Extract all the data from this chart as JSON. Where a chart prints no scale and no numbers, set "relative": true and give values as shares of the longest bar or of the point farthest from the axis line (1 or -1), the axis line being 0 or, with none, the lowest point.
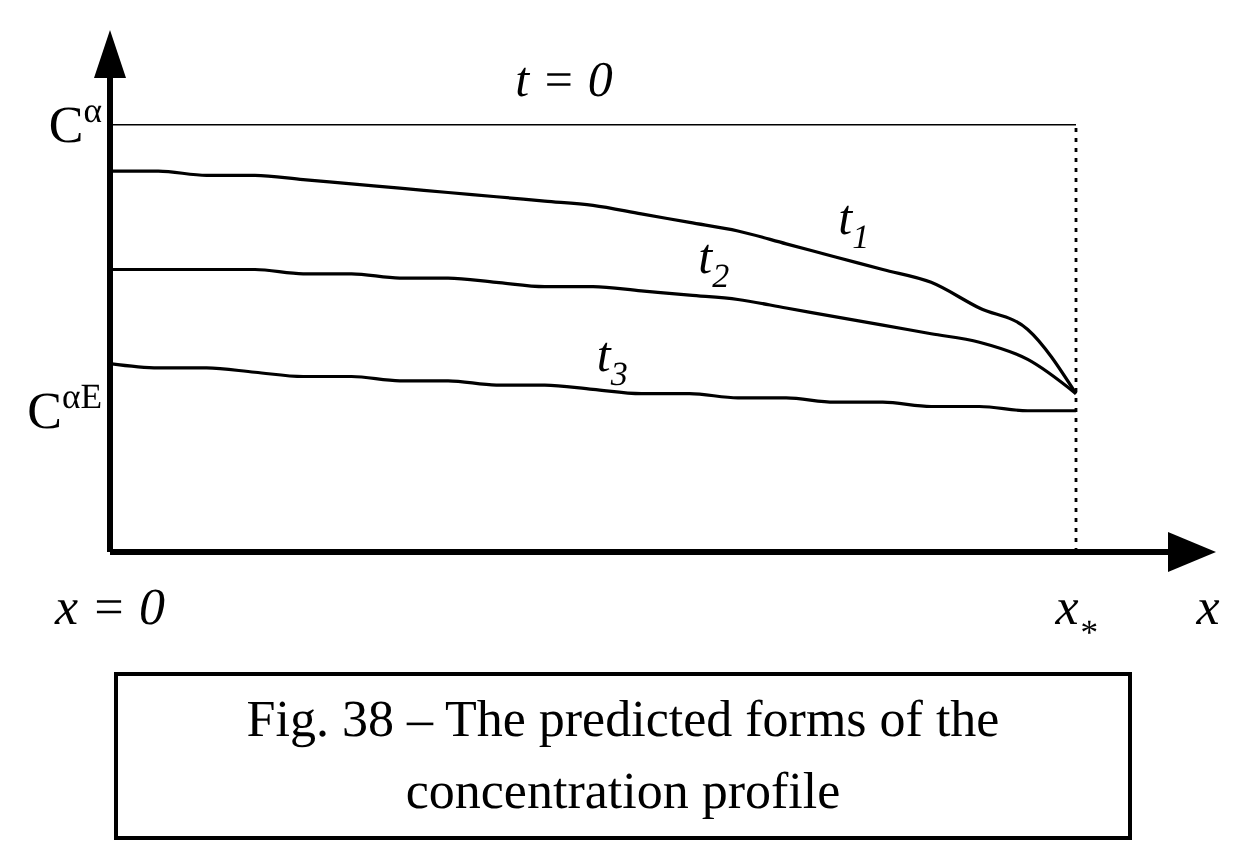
{
  "chart_data": {
    "type": "line",
    "relative": true,
    "xlabel": "x",
    "categories": [
      "x = 0",
      null,
      null,
      null,
      null,
      null,
      null,
      null,
      null,
      null,
      null,
      null,
      null,
      null,
      null,
      null,
      null,
      null,
      null,
      null,
      "x$_{*}$"
    ],
    "series": [
      {
        "name": "t = 0",
        "color": "#000000",
        "values": [
          1,
          1,
          1,
          1,
          1,
          1,
          1,
          1,
          1,
          1,
          1,
          1,
          1,
          1,
          1,
          1,
          1,
          1,
          1,
          1,
          1
        ]
      },
      {
        "name": "t$_{1}$",
        "color": "#000000",
        "values": [
          0.89,
          0.89,
          0.88,
          0.88,
          0.87,
          0.86,
          0.85,
          0.84,
          0.83,
          0.82,
          0.81,
          0.79,
          0.77,
          0.75,
          0.72,
          0.69,
          0.66,
          0.63,
          0.57,
          0.52,
          0.37
        ]
      },
      {
        "name": "t$_{2}$",
        "color": "#000000",
        "values": [
          0.66,
          0.66,
          0.66,
          0.66,
          0.65,
          0.65,
          0.64,
          0.64,
          0.63,
          0.62,
          0.62,
          0.61,
          0.6,
          0.59,
          0.57,
          0.55,
          0.53,
          0.51,
          0.49,
          0.45,
          0.37
        ]
      },
      {
        "name": "t$_{3}$",
        "color": "#000000",
        "values": [
          0.44,
          0.43,
          0.43,
          0.42,
          0.41,
          0.41,
          0.4,
          0.4,
          0.39,
          0.39,
          0.38,
          0.37,
          0.37,
          0.36,
          0.36,
          0.35,
          0.35,
          0.34,
          0.34,
          0.33,
          0.33
        ]
      }
    ],
    "ref_lines": [
      {
        "axis": "x",
        "value": "x$_{*}$",
        "color": "#000000",
        "line_style": "dotted"
      }
    ],
    "annotations": [
      {
        "text": "C$^{α}$",
        "x": "x = 0",
        "y": 1
      },
      "C$^{αE}$",
      "Fig. 38 – The predicted forms of the concentration profile"
    ]
  }
}
